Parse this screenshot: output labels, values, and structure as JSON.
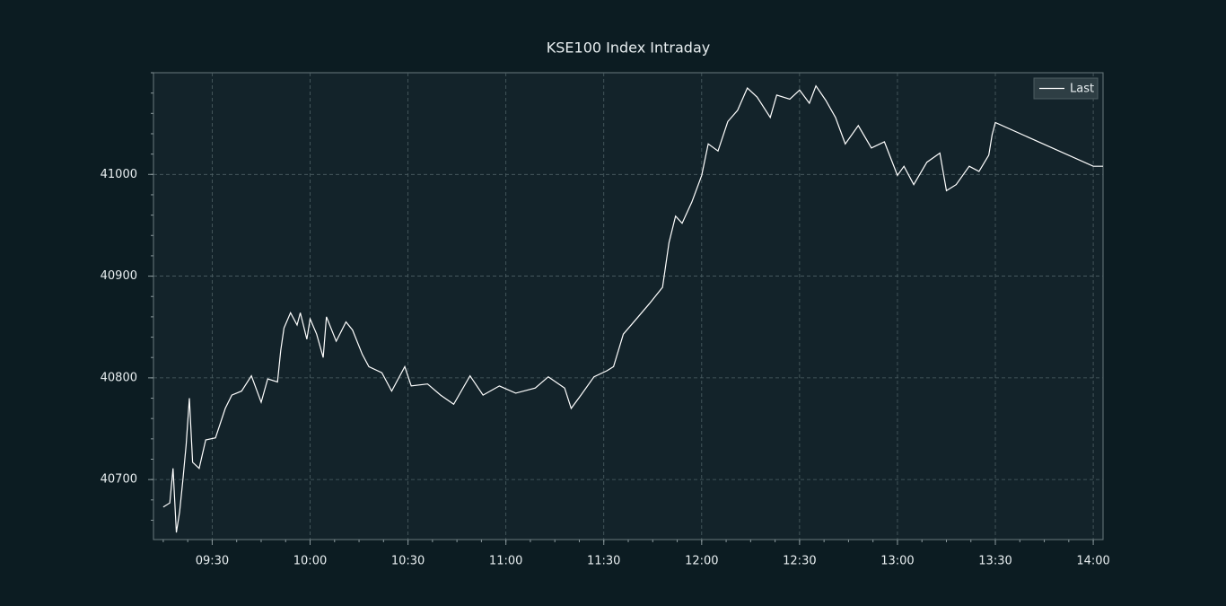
{
  "chart_data": {
    "type": "line",
    "title": "KSE100 Index Intraday",
    "x": [
      "09:15",
      "09:17",
      "09:18",
      "09:19",
      "09:20",
      "09:21",
      "09:22",
      "09:23",
      "09:24",
      "09:26",
      "09:28",
      "09:31",
      "09:34",
      "09:36",
      "09:39",
      "09:42",
      "09:45",
      "09:47",
      "09:50",
      "09:51",
      "09:52",
      "09:54",
      "09:56",
      "09:57",
      "09:59",
      "10:00",
      "10:02",
      "10:04",
      "10:05",
      "10:08",
      "10:11",
      "10:13",
      "10:16",
      "10:18",
      "10:22",
      "10:25",
      "10:29",
      "10:31",
      "10:36",
      "10:40",
      "10:44",
      "10:49",
      "10:53",
      "10:58",
      "11:03",
      "11:09",
      "11:13",
      "11:18",
      "11:20",
      "11:23",
      "11:27",
      "11:31",
      "11:33",
      "11:36",
      "11:40",
      "11:44",
      "11:48",
      "11:50",
      "11:52",
      "11:54",
      "11:57",
      "12:00",
      "12:02",
      "12:05",
      "12:08",
      "12:11",
      "12:14",
      "12:17",
      "12:21",
      "12:23",
      "12:27",
      "12:30",
      "12:33",
      "12:35",
      "12:38",
      "12:41",
      "12:44",
      "12:48",
      "12:52",
      "12:56",
      "13:00",
      "13:02",
      "13:05",
      "13:09",
      "13:13",
      "13:15",
      "13:18",
      "13:22",
      "13:25",
      "13:28",
      "13:29",
      "13:30",
      "14:00",
      "14:03"
    ],
    "series": [
      {
        "name": "Last",
        "color": "#ffffff",
        "values": [
          40673,
          40677,
          40711,
          40648,
          40668,
          40699,
          40734,
          40780,
          40717,
          40711,
          40739,
          40741,
          40770,
          40783,
          40787,
          40802,
          40776,
          40799,
          40796,
          40827,
          40849,
          40864,
          40852,
          40864,
          40838,
          40858,
          40843,
          40820,
          40860,
          40836,
          40855,
          40847,
          40823,
          40811,
          40805,
          40787,
          40811,
          40792,
          40794,
          40783,
          40774,
          40802,
          40783,
          40792,
          40785,
          40790,
          40801,
          40790,
          40770,
          40783,
          40801,
          40807,
          40811,
          40843,
          40858,
          40873,
          40889,
          40933,
          40959,
          40952,
          40973,
          40999,
          41030,
          41023,
          41052,
          41063,
          41085,
          41076,
          41056,
          41078,
          41074,
          41083,
          41070,
          41087,
          41073,
          41056,
          41030,
          41048,
          41026,
          41032,
          40999,
          41008,
          40990,
          41012,
          41021,
          40984,
          40990,
          41008,
          41003,
          41019,
          41039,
          41051,
          41008,
          41008
        ]
      }
    ],
    "xlim": [
      "09:12",
      "14:03"
    ],
    "xticks": [
      "09:30",
      "10:00",
      "10:30",
      "11:00",
      "11:30",
      "12:00",
      "12:30",
      "13:00",
      "13:30",
      "14:00"
    ],
    "ylim": [
      40641,
      41100
    ],
    "yticks": [
      40700,
      40800,
      40900,
      41000
    ],
    "grid": true,
    "legend": "upper right"
  }
}
